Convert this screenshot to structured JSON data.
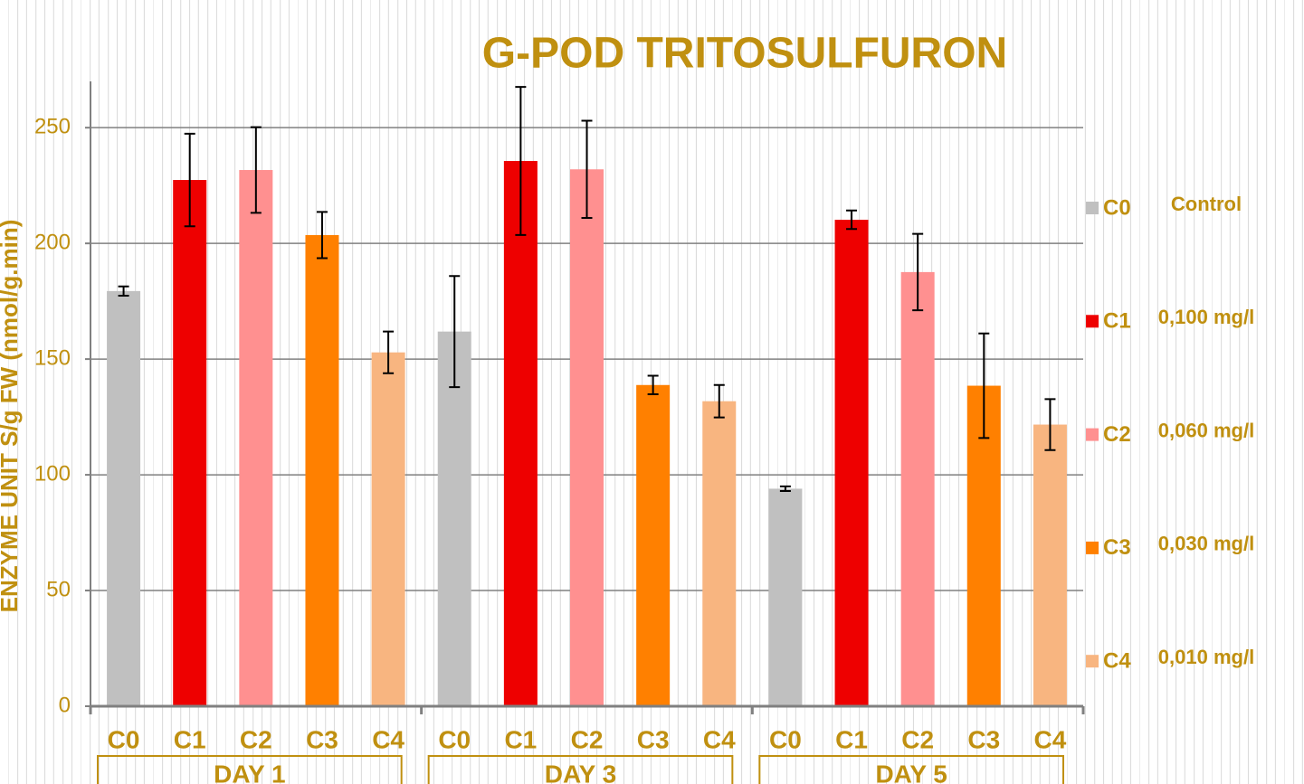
{
  "chart_data": {
    "type": "bar",
    "title": "G-POD TRITOSULFURON",
    "y_label": "ENZYME UNIT S/g FW (nmol/g.min)",
    "categories": [
      "DAY 1",
      "DAY 3",
      "DAY 5"
    ],
    "series": [
      {
        "name": "C0",
        "label": "Control",
        "color": "#c0c0c0",
        "values": [
          179.4,
          161.9,
          94
        ],
        "errors": [
          2,
          24,
          1
        ]
      },
      {
        "name": "C1",
        "label": "0,100 mg/l",
        "color": "#ee0000",
        "values": [
          227.4,
          235.6,
          210.2
        ],
        "errors": [
          20,
          32,
          4
        ]
      },
      {
        "name": "C2",
        "label": "0,060 mg/l",
        "color": "#ff9090",
        "values": [
          231.7,
          232,
          187.6
        ],
        "errors": [
          18.5,
          21,
          16.5
        ]
      },
      {
        "name": "C3",
        "label": "0,030 mg/l",
        "color": "#ff8000",
        "values": [
          203.6,
          138.8,
          138.5
        ],
        "errors": [
          10,
          4,
          22.6
        ]
      },
      {
        "name": "C4",
        "label": "0,010 mg/l",
        "color": "#f8b580",
        "values": [
          152.9,
          131.8,
          121.7
        ],
        "errors": [
          9,
          7,
          11
        ]
      }
    ],
    "ylim": [
      0,
      270
    ],
    "yticks": [
      0,
      50,
      100,
      150,
      200,
      250
    ],
    "grid": true,
    "legend": "right"
  }
}
